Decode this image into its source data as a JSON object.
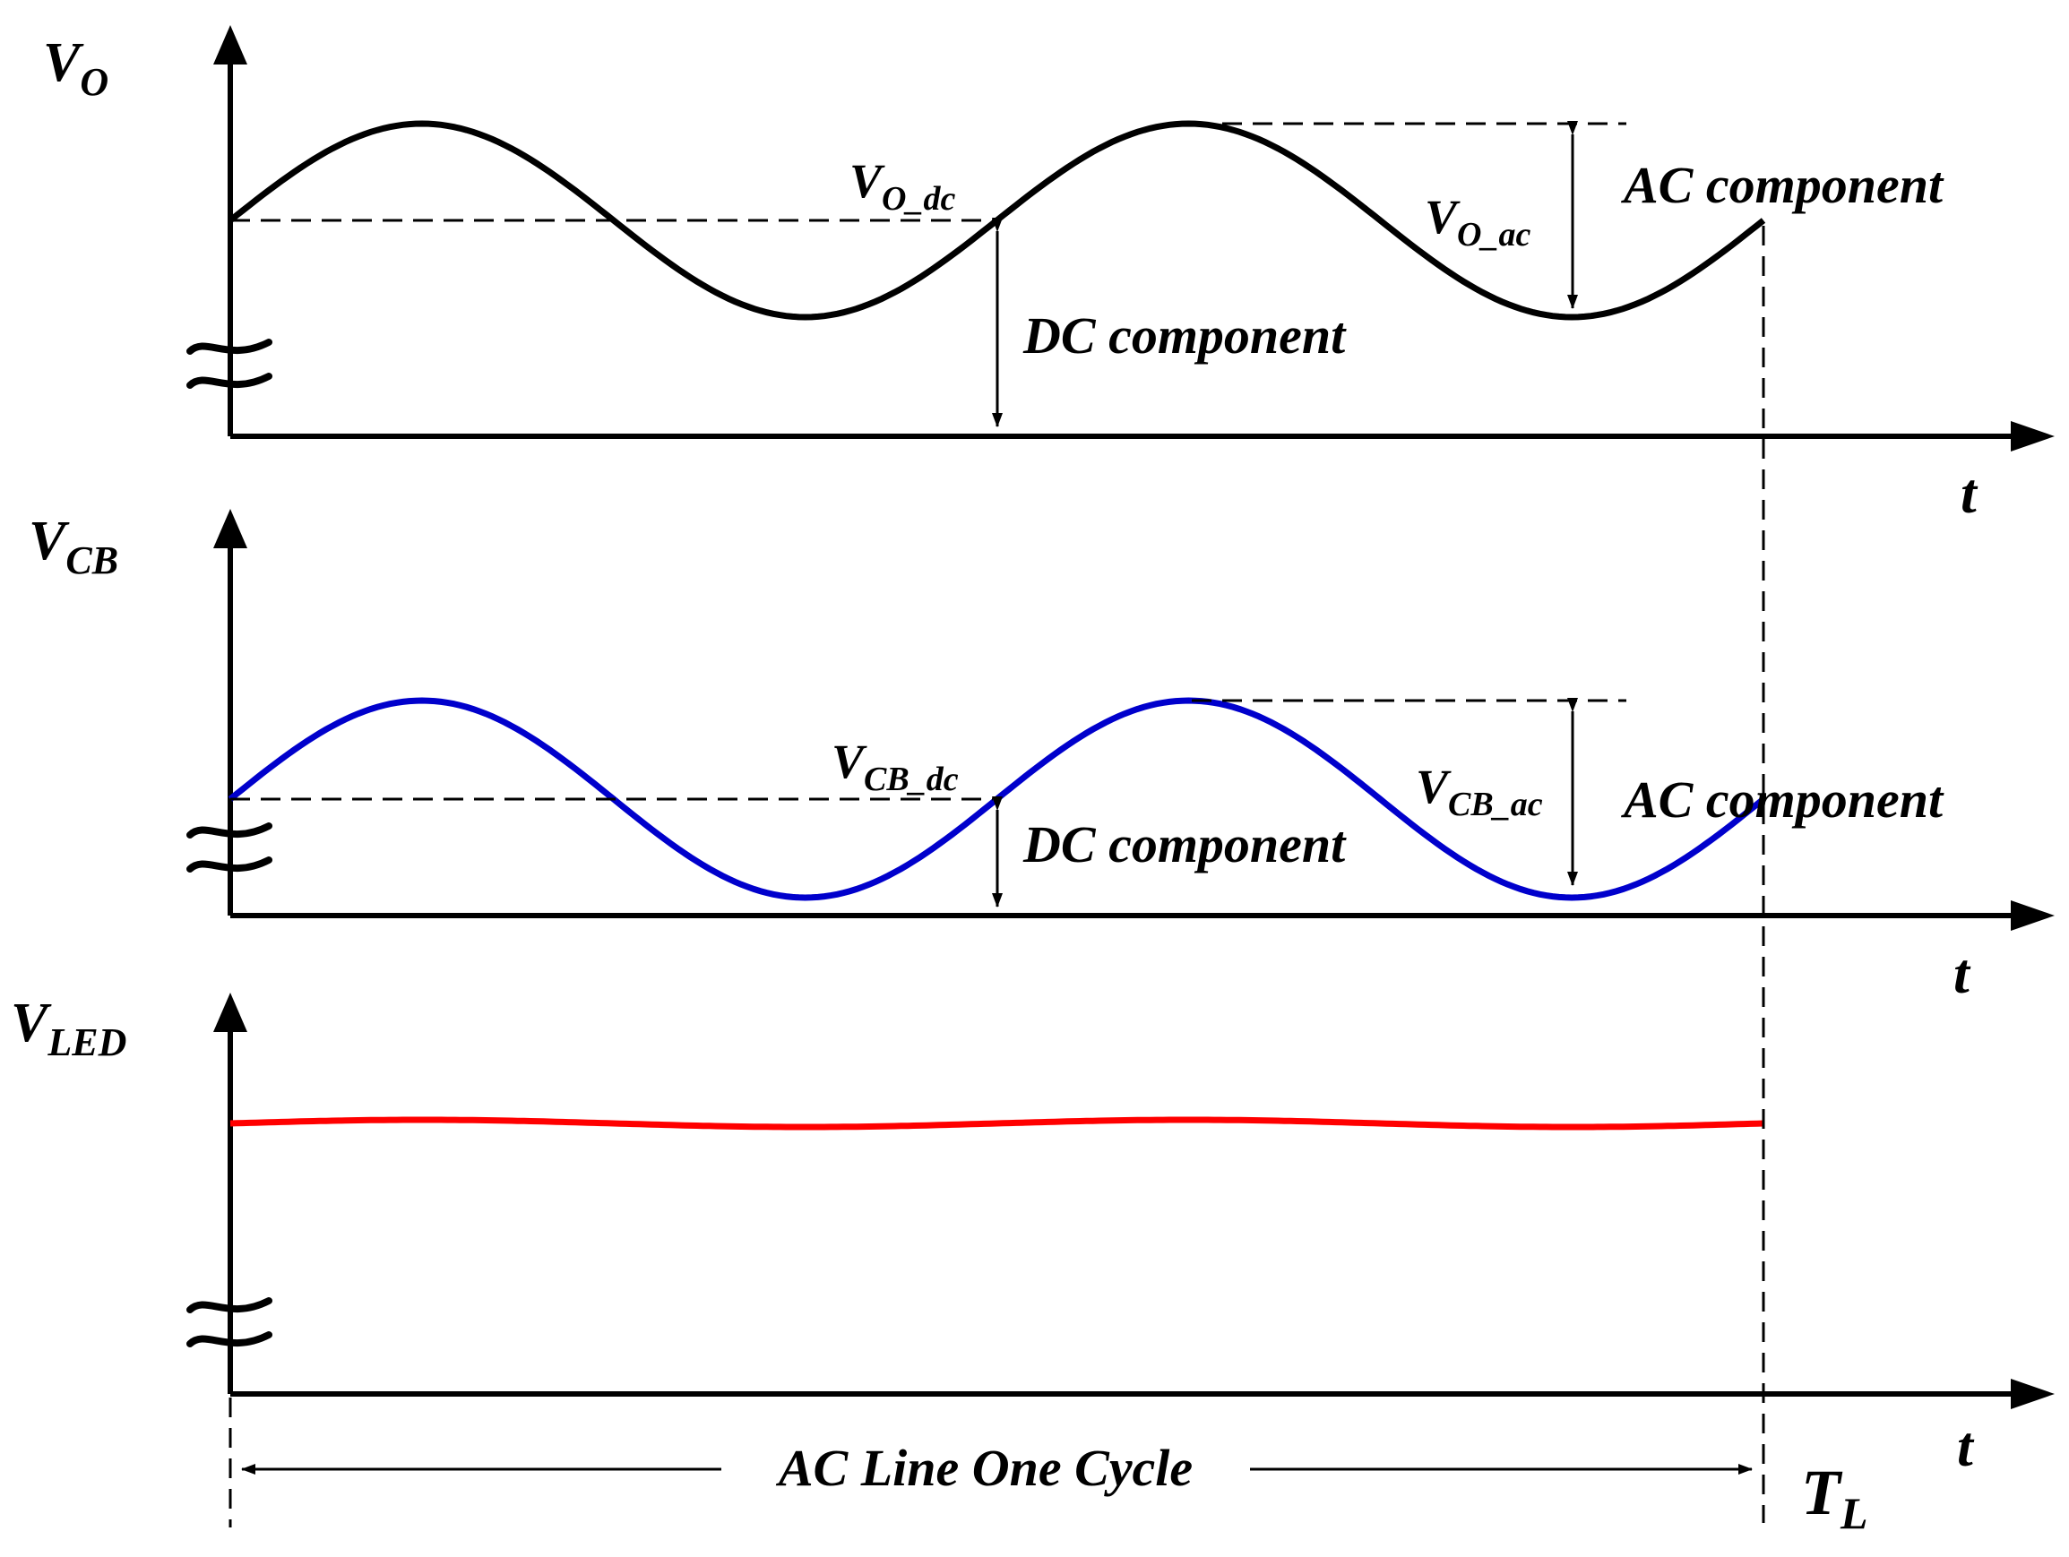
{
  "panels": [
    {
      "id": "vo",
      "axis_label": "V",
      "axis_label_sub": "O",
      "dc_label": "V",
      "dc_label_sub": "O_dc",
      "ac_label": "V",
      "ac_label_sub": "O_ac",
      "dc_component": "DC component",
      "ac_component": "AC component",
      "t_label": "t",
      "color": "#000000"
    },
    {
      "id": "vcb",
      "axis_label": "V",
      "axis_label_sub": "CB",
      "dc_label": "V",
      "dc_label_sub": "CB_dc",
      "ac_label": "V",
      "ac_label_sub": "CB_ac",
      "dc_component": "DC component",
      "ac_component": "AC component",
      "t_label": "t",
      "color": "#0000cc"
    },
    {
      "id": "vled",
      "axis_label": "V",
      "axis_label_sub": "LED",
      "t_label": "t",
      "color": "#ff0000"
    }
  ],
  "cycle_label": "AC Line One Cycle",
  "period_label": "T",
  "period_label_sub": "L"
}
